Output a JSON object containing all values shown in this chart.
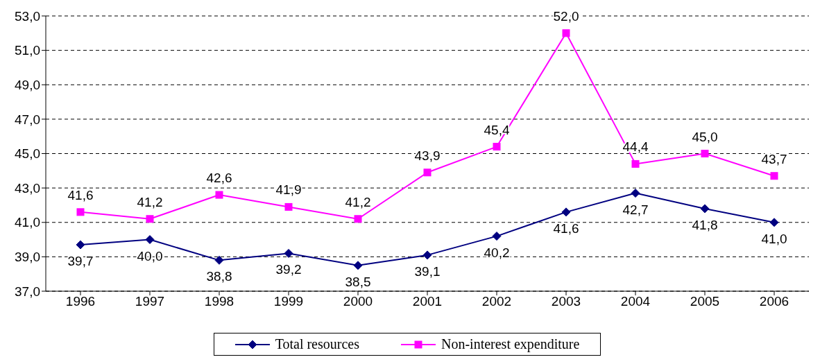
{
  "chart_data": {
    "type": "line",
    "categories": [
      "1996",
      "1997",
      "1998",
      "1999",
      "2000",
      "2001",
      "2002",
      "2003",
      "2004",
      "2005",
      "2006"
    ],
    "series": [
      {
        "name": "Total resources",
        "color": "#000080",
        "marker": "diamond",
        "values": [
          39.7,
          40.0,
          38.8,
          39.2,
          38.5,
          39.1,
          40.2,
          41.6,
          42.7,
          41.8,
          41.0
        ],
        "value_labels": [
          "39,7",
          "40,0",
          "38,8",
          "39,2",
          "38,5",
          "39,1",
          "40,2",
          "41,6",
          "42,7",
          "41,8",
          "41,0"
        ]
      },
      {
        "name": "Non-interest expenditure",
        "color": "#ff00ff",
        "marker": "square",
        "values": [
          41.6,
          41.2,
          42.6,
          41.9,
          41.2,
          43.9,
          45.4,
          52.0,
          44.4,
          45.0,
          43.7
        ],
        "value_labels": [
          "41,6",
          "41,2",
          "42,6",
          "41,9",
          "41,2",
          "43,9",
          "45,4",
          "52,0",
          "44,4",
          "45,0",
          "43,7"
        ]
      }
    ],
    "ylim": [
      37,
      53
    ],
    "yticks": [
      {
        "value": 37,
        "label": "37,0"
      },
      {
        "value": 39,
        "label": "39,0"
      },
      {
        "value": 41,
        "label": "41,0"
      },
      {
        "value": 43,
        "label": "43,0"
      },
      {
        "value": 45,
        "label": "45,0"
      },
      {
        "value": 47,
        "label": "47,0"
      },
      {
        "value": 49,
        "label": "49,0"
      },
      {
        "value": 51,
        "label": "51,0"
      },
      {
        "value": 53,
        "label": "53,0"
      }
    ],
    "grid": "y",
    "legend": "bottom",
    "line_style": "solid"
  }
}
